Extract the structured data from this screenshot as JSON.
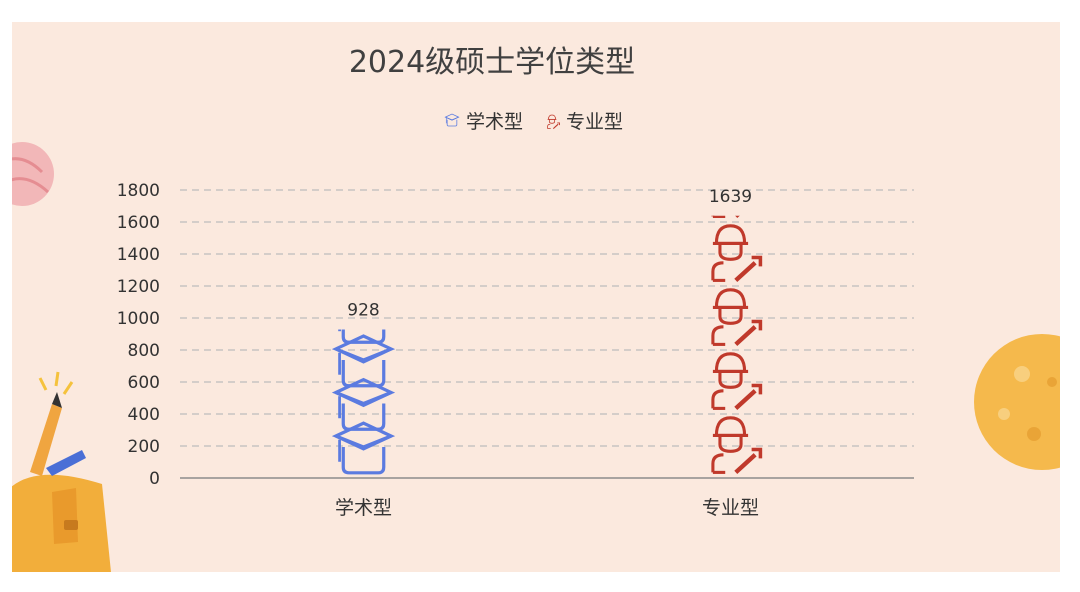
{
  "chart_data": {
    "type": "bar",
    "title": "2024级硕士学位类型",
    "categories": [
      "学术型",
      "专业型"
    ],
    "series": [
      {
        "name": "学术型",
        "values": [
          928,
          null
        ],
        "color": "#5b7be0",
        "icon": "graduation-cap-icon"
      },
      {
        "name": "专业型",
        "values": [
          null,
          1639
        ],
        "color": "#c0392b",
        "icon": "worker-with-wrench-icon"
      }
    ],
    "data_labels": [
      "928",
      "1639"
    ],
    "yticks": [
      0,
      200,
      400,
      600,
      800,
      1000,
      1200,
      1400,
      1600,
      1800
    ],
    "ylim": [
      0,
      1800
    ],
    "grid": true,
    "legend_position": "top-center",
    "xlabel": "",
    "ylabel": ""
  },
  "colors": {
    "background": "#fbe9de",
    "grid": "#bdbdbd",
    "axis": "#8c8c8c",
    "academic": "#5b7be0",
    "professional": "#c0392b"
  }
}
